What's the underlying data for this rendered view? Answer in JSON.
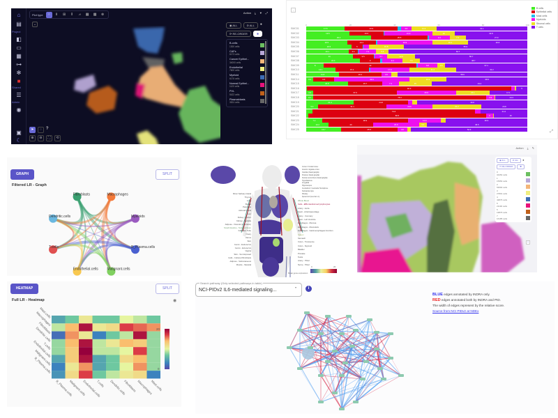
{
  "umap_panel": {
    "sidebar": {
      "sections": [
        "Project",
        "Shared",
        "Admin"
      ],
      "icons": [
        "home-icon",
        "folder-icon",
        "layout-icon",
        "folder-open-icon",
        "calendar-icon",
        "hierarchy-icon",
        "settings-gear-icon",
        "red-folder-icon",
        "server-icon",
        "user-settings-icon",
        "panel-icon",
        "moon-icon"
      ]
    },
    "toolbar": {
      "plot_type_label": "Plot type",
      "plot_types": [
        "⁘",
        "Ⅱ",
        "⊞",
        "⫴",
        "⩘",
        "▦",
        "▩",
        "⊗"
      ],
      "active_plot_type_index": 0,
      "action_label": "Action"
    },
    "legend": {
      "show_all_label": "ALL",
      "hide_all_label": "ALL",
      "reorder_label": "RE-ORDER",
      "items": [
        {
          "name": "B-cells",
          "count": "1300 cells",
          "color": "#6cbf60"
        },
        {
          "name": "CAFs",
          "count": "6173 cells",
          "color": "#b8a8d8"
        },
        {
          "name": "Cancer Epithel...",
          "count": "34000 cells",
          "color": "#f4b67a"
        },
        {
          "name": "Endothelial",
          "count": "7600 cells",
          "color": "#f0ee80"
        },
        {
          "name": "Myeloid",
          "count": "6176 cells",
          "color": "#3c6cb4"
        },
        {
          "name": "Normal Epithel...",
          "count": "1120 cells",
          "color": "#e8127a"
        },
        {
          "name": "PVL",
          "count": "5422 cells",
          "color": "#c0601a"
        },
        {
          "name": "Plasmablasts",
          "count": "3524 cells",
          "color": "#666666"
        }
      ]
    }
  },
  "stacked_bar_panel": {
    "chart_data": {
      "type": "bar",
      "orientation": "horizontal-stacked-percent",
      "xlim": [
        0,
        100
      ],
      "x_ticks": [
        "0",
        "20",
        "40",
        "60",
        "80",
        "100"
      ],
      "legend": [
        {
          "name": "B cells",
          "color": "#44ee22"
        },
        {
          "name": "Epithelial cells",
          "color": "#dd0011"
        },
        {
          "name": "Mast cells",
          "color": "#22bbee"
        },
        {
          "name": "Myeloids",
          "color": "#ee11ee"
        },
        {
          "name": "Stromal cells",
          "color": "#eedd22"
        },
        {
          "name": "T cells",
          "color": "#8811ee"
        }
      ],
      "categories": [
        "SMC01",
        "SMC02",
        "SMC03",
        "SMC04",
        "SMC05",
        "SMC06",
        "SMC07",
        "SMC08",
        "SMC09",
        "SMC10",
        "SMC11",
        "SMC14",
        "SMC15",
        "SMC16",
        "SMC17",
        "SMC18",
        "SMC19",
        "SMC20",
        "SMC21",
        "SMC22",
        "SMC23",
        "SMC24",
        "SMC25"
      ],
      "series": [
        {
          "name": "B cells",
          "values": [
            17.5,
            19.5,
            29.4,
            18.5,
            20.5,
            19.1,
            21.0,
            24.4,
            8.0,
            13.1,
            14.8,
            3.2,
            18.8,
            0.4,
            3.3,
            3.1,
            21.4,
            5.3,
            2.8,
            0.9,
            7.2,
            10.2,
            15.7
          ]
        },
        {
          "name": "Epithelial cells",
          "values": [
            23.9,
            15.5,
            25.5,
            13.1,
            5.0,
            4.4,
            9.5,
            9.0,
            42.0,
            15.2,
            19.2,
            9.5,
            15.7,
            92.3,
            37.6,
            78.3,
            24.8,
            31.1,
            73.6,
            80.5,
            38.9,
            20.0,
            25.5
          ]
        },
        {
          "name": "Mast cells",
          "values": [
            1.5,
            0.3,
            0.6,
            0.6,
            0.5,
            0.3,
            0.5,
            1.0,
            0.5,
            0.7,
            0.0,
            0.0,
            0.0,
            0.0,
            0.0,
            0.0,
            0.0,
            0.0,
            0.0,
            0.0,
            0.0,
            0.0,
            0.0
          ]
        },
        {
          "name": "Myeloids",
          "values": [
            4.6,
            21.9,
            9.4,
            24.9,
            2.3,
            7.9,
            5.7,
            9.3,
            8.8,
            17.6,
            4.5,
            33.9,
            7.3,
            1.6,
            26.9,
            3.9,
            1.8,
            20.6,
            2.4,
            3.0,
            14.9,
            20.9,
            4.6
          ]
        },
        {
          "name": "Stromal cells",
          "values": [
            11.4,
            10.0,
            7.2,
            16.1,
            15.8,
            5.6,
            12.6,
            7.6,
            3.6,
            21.2,
            2.9,
            16.9,
            15.0,
            0.7,
            15.1,
            0.3,
            2.2,
            22.2,
            0.0,
            0.6,
            2.1,
            3.4,
            1.6
          ]
        },
        {
          "name": "T cells",
          "values": [
            41.1,
            32.8,
            27.9,
            26.8,
            55.9,
            62.7,
            50.7,
            48.7,
            37.1,
            32.2,
            58.6,
            36.5,
            43.2,
            5.0,
            17.1,
            14.4,
            49.8,
            20.8,
            21.2,
            15.0,
            36.9,
            45.5,
            52.6
          ]
        }
      ]
    }
  },
  "graph_panel": {
    "mode_button": "GRAPH",
    "split_button": "SPLIT",
    "title": "Filtered LR - Graph",
    "nodes": [
      {
        "name": "Fibroblasts",
        "color": "#3aa070"
      },
      {
        "name": "Macrophages",
        "color": "#f47a3a"
      },
      {
        "name": "Myeloids",
        "color": "#9a5ac0"
      },
      {
        "name": "B_Plasma.cells",
        "color": "#4a60d0"
      },
      {
        "name": "Malignant.cells",
        "color": "#80d060"
      },
      {
        "name": "Endothelial.cells",
        "color": "#f8c850"
      },
      {
        "name": "T.cells",
        "color": "#e05050"
      },
      {
        "name": "Dendritic.cells",
        "color": "#6ab8e0"
      }
    ]
  },
  "heatmap_panel": {
    "mode_button": "HEATMAP",
    "split_button": "SPLIT",
    "title": "Full LR - Heatmap",
    "chart_data": {
      "type": "heatmap",
      "title": "Full LR - Heatmap",
      "x_labels": [
        "B_Plasma.cells",
        "Malignant.cells",
        "Endothelial.cells",
        "T.cells",
        "Dendritic.cells",
        "Fibroblasts",
        "Macrophages",
        "Mast.cells"
      ],
      "y_labels": [
        "Mast.cells",
        "Macrophages",
        "Fibroblasts",
        "Dendritic.cells",
        "T.cells",
        "Endothelial.cells",
        "Malignant.cells",
        "B_Plasma.cells"
      ],
      "colorbar": {
        "min": 0,
        "max": 20,
        "ticks": [
          "0",
          "20"
        ]
      },
      "values": [
        [
          5,
          7,
          11,
          7,
          7,
          10,
          9,
          7
        ],
        [
          9,
          14,
          19,
          11,
          12,
          17,
          16,
          15
        ],
        [
          2,
          15,
          11,
          3,
          7,
          9,
          19,
          8
        ],
        [
          8,
          14,
          19,
          9,
          11,
          14,
          13,
          8
        ],
        [
          8,
          13,
          20,
          9,
          9,
          10,
          17,
          8
        ],
        [
          5,
          13,
          19,
          5,
          7,
          12,
          14,
          8
        ],
        [
          3,
          11,
          15,
          5,
          7,
          10,
          15,
          8
        ],
        [
          4,
          12,
          17,
          7,
          9,
          11,
          12,
          3
        ]
      ]
    },
    "eye_icon": "eye-icon"
  },
  "anatomy_panel": {
    "left_labels": [
      "Minor Salivary Gland",
      "Thyroid",
      "Lung",
      "Breast",
      "Pancreas",
      "Adrenal Gland",
      "Liver",
      "Kidney - Cortex",
      "Kidney - Medulla",
      "Adipose - Visceral (Omentum)",
      "Small Intestine - Terminal Ileum",
      "Fallopian Tube",
      "Ovary",
      "Uterus",
      "Skin",
      "Cervix - Endocervix",
      "Cervix - Ectocervix",
      "Vagina",
      "Skin - Sun Exposed",
      "Cells - Cultured fibroblasts",
      "Adipose - Subcutaneous",
      "Muscle - Skeletal"
    ],
    "brain_labels": [
      "Cortex / Frontal Cortex",
      "Anterior cingulate cortex",
      "Caudate (basal ganglia)",
      "Putamen (basal ganglia)",
      "Nucleus accumbens (basal ganglia)",
      "Hypothalamus",
      "Amygdala",
      "Hippocampus",
      "Cerebellum / Cerebellar Hemisphere",
      "Substantia nigra",
      "Pituitary",
      "Spinal cord (cervical c-1)"
    ],
    "right_labels": [
      "Whole Blood",
      "Cells - EBV-transformed lymphocytes",
      "Artery - Aorta",
      "Heart - Atrial Appendage",
      "Artery - Coronary",
      "Heart - Left Ventricle",
      "Esophagus - Mucosa",
      "Esophagus - Muscularis",
      "Esophagus - Gastroesophageal Junction",
      "Spleen",
      "Stomach",
      "Colon - Transverse",
      "Colon - Sigmoid",
      "Bladder",
      "Prostate",
      "Testis",
      "Artery - Tibial",
      "Nerve - Tibial"
    ],
    "colorbar_label": "Mean gene expression",
    "colorbar_min": "0",
    "colorbar_max": "20"
  },
  "tissue_panel": {
    "action_label": "Action",
    "show_all_label": "ALL",
    "hide_all_label": "ALL",
    "reorder_label": "RE-ORDER",
    "clusters": [
      {
        "name": "0",
        "count": "34454 cells",
        "color": "#6cbf60"
      },
      {
        "name": "1",
        "count": "15954 cells",
        "color": "#b8a8d8"
      },
      {
        "name": "2",
        "count": "53690 cells",
        "color": "#f4b67a"
      },
      {
        "name": "3",
        "count": "27801 cells",
        "color": "#f0ee80"
      },
      {
        "name": "4",
        "count": "43876 cells",
        "color": "#3c6cb4"
      },
      {
        "name": "5",
        "count": "21190 cells",
        "color": "#e8127a"
      },
      {
        "name": "6",
        "count": "19876 cells",
        "color": "#c0601a"
      },
      {
        "name": "7",
        "count": "16185 cells",
        "color": "#666666"
      }
    ]
  },
  "network_panel": {
    "search_label": "Search pathway (Only selected pathways in table)",
    "search_value": "NCI-PIDv2 IL6-mediated signaling...",
    "legend": {
      "blue_word": "BLUE",
      "blue_text": " edges annotated by INDRA only.",
      "red_word": "RED",
      "red_text": " edges annotated both by INDRA and PID.",
      "width_text": "The width of edges represent by the relative score.",
      "source_link": "Source from NCI PIDv2 at NDEx"
    },
    "colors": {
      "blue_edge": "#4a9af0",
      "red_edge": "#d83050",
      "node": "#8ecab0",
      "hub": "#a8c8e0"
    }
  }
}
